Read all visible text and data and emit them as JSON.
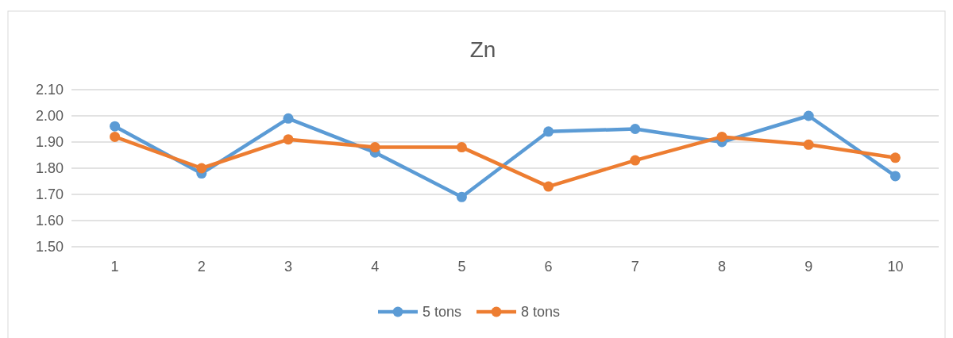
{
  "chart_data": {
    "type": "line",
    "title": "Zn",
    "categories": [
      "1",
      "2",
      "3",
      "4",
      "5",
      "6",
      "7",
      "8",
      "9",
      "10"
    ],
    "series": [
      {
        "name": "5 tons",
        "color": "#5b9bd5",
        "values": [
          1.96,
          1.78,
          1.99,
          1.86,
          1.69,
          1.94,
          1.95,
          1.9,
          2.0,
          1.77
        ]
      },
      {
        "name": "8 tons",
        "color": "#ed7d31",
        "values": [
          1.92,
          1.8,
          1.91,
          1.88,
          1.88,
          1.73,
          1.83,
          1.92,
          1.89,
          1.84
        ]
      }
    ],
    "ylim": [
      1.5,
      2.1
    ],
    "yticks": [
      {
        "value": 1.5,
        "label": "1.50"
      },
      {
        "value": 1.6,
        "label": "1.60"
      },
      {
        "value": 1.7,
        "label": "1.70"
      },
      {
        "value": 1.8,
        "label": "1.80"
      },
      {
        "value": 1.9,
        "label": "1.90"
      },
      {
        "value": 2.0,
        "label": "2.00"
      },
      {
        "value": 2.1,
        "label": "2.10"
      }
    ],
    "grid": "y",
    "legend": "bottom",
    "marker": "circle",
    "line_style": "solid"
  }
}
